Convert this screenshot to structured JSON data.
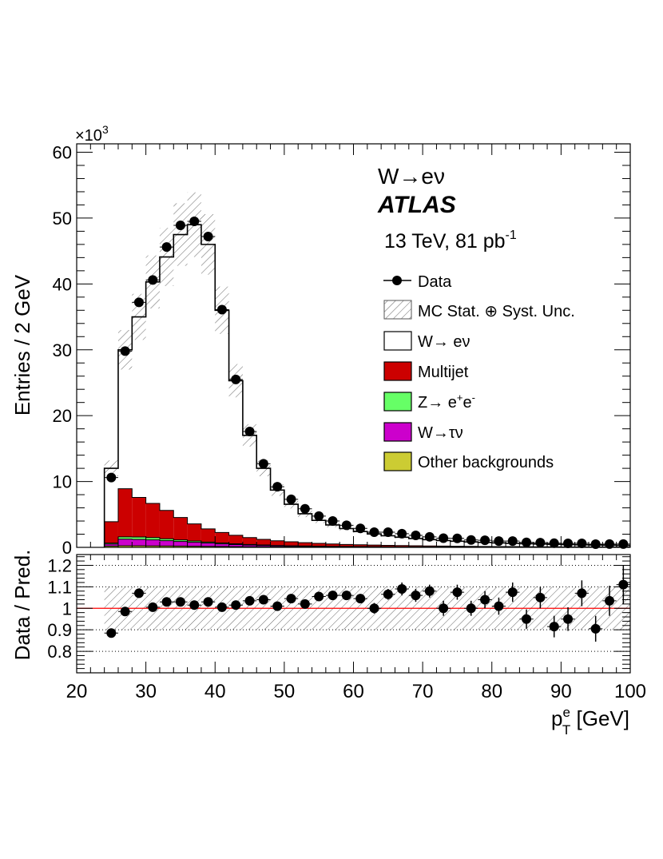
{
  "chart_data": [
    {
      "type": "bar",
      "panel": "main",
      "stacked": true,
      "ylabel": "Entries / 2 GeV",
      "yscale_label": "×10",
      "yscale_exp": "3",
      "ylim": [
        0,
        60000
      ],
      "xlim": [
        20,
        100
      ],
      "ytick_labels": [
        "0",
        "10",
        "20",
        "30",
        "40",
        "50",
        "60"
      ],
      "annotation": {
        "process": "W→eν",
        "experiment": "ATLAS",
        "energy_lumi": "13 TeV, 81 pb",
        "lumi_exp": "-1"
      },
      "legend": {
        "position": "top-right",
        "entries": [
          {
            "label": "Data",
            "style": "marker"
          },
          {
            "label": "MC Stat. ⊕ Syst. Unc.",
            "style": "hatch"
          },
          {
            "label": "W→ eν",
            "style": "fill",
            "color": "#ffffff"
          },
          {
            "label": "Multijet",
            "style": "fill",
            "color": "#cc0000"
          },
          {
            "label": "Z→ e",
            "sup1": "+",
            "mid": "e",
            "sup2": "-",
            "style": "fill",
            "color": "#66ff66"
          },
          {
            "label": "W→τν",
            "style": "fill",
            "color": "#cc00cc"
          },
          {
            "label": "Other backgrounds",
            "style": "fill",
            "color": "#cccc33"
          }
        ]
      },
      "bin_width": 2,
      "bin_centers": [
        25,
        27,
        29,
        31,
        33,
        35,
        37,
        39,
        41,
        43,
        45,
        47,
        49,
        51,
        53,
        55,
        57,
        59,
        61,
        63,
        65,
        67,
        69,
        71,
        73,
        75,
        77,
        79,
        81,
        83,
        85,
        87,
        89,
        91,
        93,
        95,
        97,
        99
      ],
      "series": [
        {
          "name": "Other backgrounds",
          "color": "#cccc33",
          "values": [
            200,
            250,
            250,
            230,
            210,
            190,
            170,
            150,
            130,
            110,
            95,
            85,
            75,
            65,
            55,
            50,
            45,
            40,
            36,
            32,
            28,
            25,
            22,
            20,
            18,
            16,
            14,
            13,
            12,
            11,
            10,
            9,
            8,
            8,
            7,
            7,
            6,
            6
          ]
        },
        {
          "name": "W→τν",
          "color": "#cc00cc",
          "values": [
            300,
            1000,
            950,
            900,
            800,
            700,
            600,
            500,
            400,
            320,
            250,
            200,
            160,
            130,
            110,
            90,
            75,
            65,
            55,
            48,
            42,
            37,
            33,
            29,
            26,
            23,
            21,
            19,
            17,
            15,
            14,
            13,
            12,
            11,
            10,
            9,
            8,
            8
          ]
        },
        {
          "name": "Z→ e+e-",
          "color": "#66ff66",
          "values": [
            150,
            350,
            380,
            350,
            300,
            250,
            200,
            160,
            130,
            110,
            90,
            75,
            60,
            50,
            45,
            40,
            35,
            30,
            26,
            22,
            20,
            18,
            16,
            14,
            12,
            11,
            10,
            9,
            8,
            7,
            7,
            6,
            6,
            5,
            5,
            5,
            4,
            4
          ]
        },
        {
          "name": "Multijet",
          "color": "#cc0000",
          "values": [
            3250,
            7300,
            6000,
            5200,
            4300,
            3400,
            2600,
            2000,
            1600,
            1300,
            1050,
            850,
            700,
            600,
            500,
            420,
            360,
            310,
            270,
            240,
            210,
            190,
            170,
            150,
            135,
            120,
            110,
            100,
            90,
            82,
            75,
            68,
            62,
            57,
            52,
            48,
            44,
            40
          ]
        },
        {
          "name": "W→ eν",
          "color": "#ffffff",
          "values": [
            8100,
            21100,
            27420,
            33620,
            38490,
            42960,
            45430,
            43190,
            33740,
            23470,
            15520,
            10790,
            7705,
            5705,
            4390,
            3500,
            2885,
            2405,
            2013,
            1698,
            1460,
            1265,
            1099,
            967,
            851,
            760,
            675,
            605,
            548,
            495,
            450,
            408,
            372,
            339,
            311,
            286,
            263,
            242
          ]
        }
      ],
      "data": {
        "name": "Data",
        "values": [
          10600,
          29800,
          37200,
          40600,
          45600,
          48900,
          49500,
          47200,
          36100,
          25500,
          17600,
          12700,
          9200,
          7300,
          5850,
          4750,
          4000,
          3350,
          2880,
          2300,
          2300,
          2080,
          1820,
          1600,
          1400,
          1370,
          1120,
          1080,
          960,
          950,
          760,
          720,
          630,
          600,
          600,
          480,
          500,
          500
        ]
      },
      "mc_uncertainty_fraction": 0.1
    },
    {
      "type": "scatter",
      "panel": "ratio",
      "ylabel": "Data / Pred.",
      "xlabel": "p",
      "xlabel_sup": "e",
      "xlabel_sub": "T",
      "xlabel_unit": " [GeV]",
      "xlim": [
        20,
        100
      ],
      "ylim": [
        0.7,
        1.25
      ],
      "xtick_labels": [
        "20",
        "30",
        "40",
        "50",
        "60",
        "70",
        "80",
        "90",
        "100"
      ],
      "ytick_labels": [
        "0.8",
        "0.9",
        "1",
        "1.1",
        "1.2"
      ],
      "reference_line": 1,
      "grid_lines": [
        0.8,
        0.9,
        1.1,
        1.2
      ],
      "x": [
        25,
        27,
        29,
        31,
        33,
        35,
        37,
        39,
        41,
        43,
        45,
        47,
        49,
        51,
        53,
        55,
        57,
        59,
        61,
        63,
        65,
        67,
        69,
        71,
        73,
        75,
        77,
        79,
        81,
        83,
        85,
        87,
        89,
        91,
        93,
        95,
        97,
        99
      ],
      "values": [
        0.885,
        0.985,
        1.07,
        1.005,
        1.03,
        1.03,
        1.015,
        1.03,
        1.005,
        1.015,
        1.035,
        1.04,
        1.01,
        1.045,
        1.02,
        1.055,
        1.06,
        1.06,
        1.045,
        1.0,
        1.065,
        1.09,
        1.06,
        1.08,
        1.0,
        1.075,
        1.0,
        1.04,
        1.01,
        1.075,
        0.95,
        1.05,
        0.915,
        0.95,
        1.07,
        0.905,
        1.035,
        1.11
      ],
      "errors": [
        0.01,
        0.01,
        0.01,
        0.01,
        0.01,
        0.01,
        0.01,
        0.01,
        0.01,
        0.01,
        0.01,
        0.015,
        0.015,
        0.015,
        0.015,
        0.02,
        0.02,
        0.02,
        0.02,
        0.025,
        0.025,
        0.03,
        0.03,
        0.03,
        0.035,
        0.035,
        0.035,
        0.04,
        0.04,
        0.045,
        0.045,
        0.05,
        0.05,
        0.055,
        0.06,
        0.06,
        0.07,
        0.09
      ]
    }
  ]
}
